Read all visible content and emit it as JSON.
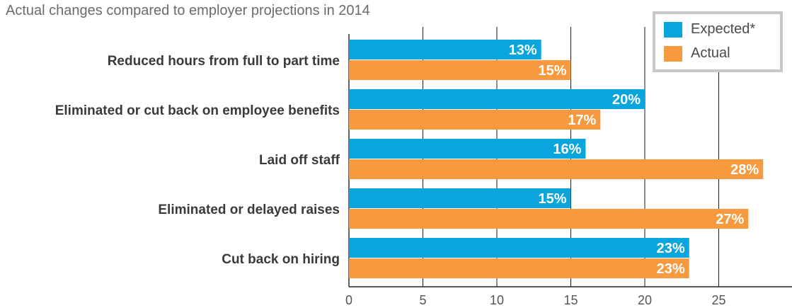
{
  "chart_data": {
    "type": "bar",
    "orientation": "horizontal",
    "title": "Actual changes compared to employer projections in 2014",
    "categories": [
      "Reduced hours from full to part time",
      "Eliminated or cut back on employee benefits",
      "Laid off staff",
      "Eliminated or delayed raises",
      "Cut back on hiring"
    ],
    "series": [
      {
        "name": "Expected*",
        "color": "#0aa5dc",
        "values": [
          13,
          20,
          16,
          15,
          23
        ],
        "labels": [
          "13%",
          "20%",
          "16%",
          "15%",
          "23%"
        ]
      },
      {
        "name": "Actual",
        "color": "#f7993e",
        "values": [
          15,
          17,
          28,
          27,
          23
        ],
        "labels": [
          "15%",
          "17%",
          "28%",
          "27%",
          "23%"
        ]
      }
    ],
    "xlim": [
      0,
      30
    ],
    "xticks": [
      "0",
      "5",
      "10",
      "15",
      "20",
      "25"
    ],
    "xtick_values": [
      0,
      5,
      10,
      15,
      20,
      25
    ],
    "grid": "vertical",
    "legend_position": "top-right"
  }
}
